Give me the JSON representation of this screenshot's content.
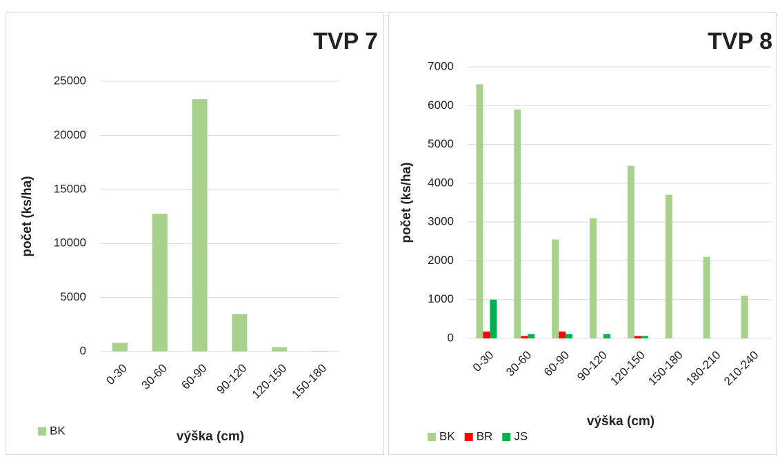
{
  "chart_data": [
    {
      "type": "bar",
      "title": "TVP 7",
      "xlabel": "výška (cm)",
      "ylabel": "počet (ks/ha)",
      "categories": [
        "0-30",
        "30-60",
        "60-90",
        "90-120",
        "120-150",
        "150-180"
      ],
      "series": [
        {
          "name": "BK",
          "color": "#a9d18e",
          "values": [
            800,
            12750,
            23350,
            3450,
            400,
            50
          ]
        }
      ],
      "ylim": [
        0,
        25000
      ],
      "yticks": [
        0,
        5000,
        10000,
        15000,
        20000,
        25000
      ],
      "grid": true,
      "legend": "bottom-left"
    },
    {
      "type": "bar",
      "title": "TVP 8",
      "xlabel": "výška (cm)",
      "ylabel": "počet (ks/ha)",
      "categories": [
        "0-30",
        "30-60",
        "60-90",
        "90-120",
        "120-150",
        "150-180",
        "180-210",
        "210-240"
      ],
      "series": [
        {
          "name": "BK",
          "color": "#a9d18e",
          "values": [
            6550,
            5900,
            2550,
            3100,
            4450,
            3700,
            2100,
            1100
          ]
        },
        {
          "name": "BR",
          "color": "#ff0000",
          "values": [
            175,
            60,
            175,
            0,
            60,
            0,
            0,
            0
          ]
        },
        {
          "name": "JS",
          "color": "#00b050",
          "values": [
            1000,
            110,
            110,
            110,
            60,
            0,
            0,
            0
          ]
        }
      ],
      "ylim": [
        0,
        7000
      ],
      "yticks": [
        0,
        1000,
        2000,
        3000,
        4000,
        5000,
        6000,
        7000
      ],
      "grid": true,
      "legend": "bottom-left"
    }
  ]
}
